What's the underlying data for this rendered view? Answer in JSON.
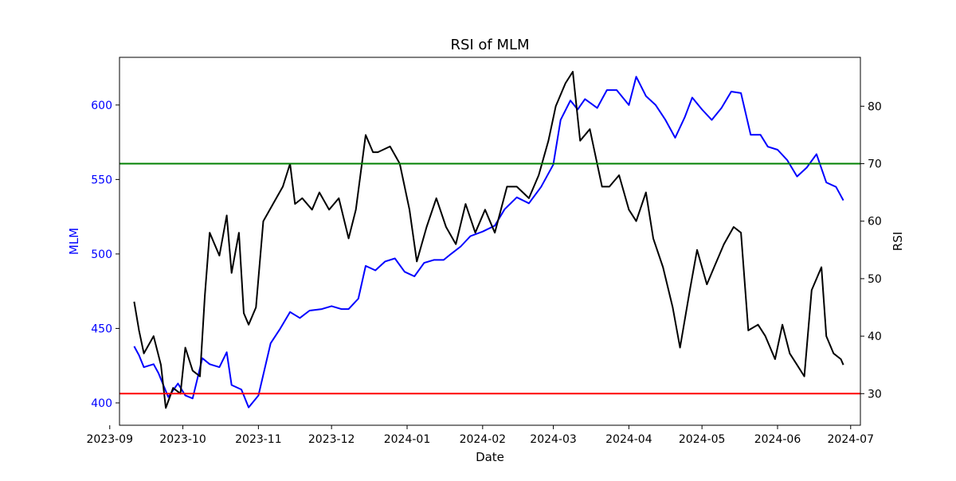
{
  "chart_data": {
    "type": "line",
    "title": "RSI of MLM",
    "xlabel": "Date",
    "ylabel_left": "MLM",
    "ylabel_right": "RSI",
    "x_start": "2023-09-05",
    "x_end": "2024-07-05",
    "x_ticks": [
      "2023-09",
      "2023-10",
      "2023-11",
      "2023-12",
      "2024-01",
      "2024-02",
      "2024-03",
      "2024-04",
      "2024-05",
      "2024-06",
      "2024-07"
    ],
    "ylim_left": [
      385,
      632
    ],
    "ylim_right": [
      24.5,
      88.5
    ],
    "yticks_left": [
      400,
      450,
      500,
      550,
      600
    ],
    "yticks_right": [
      30,
      40,
      50,
      60,
      70,
      80
    ],
    "reference_lines": [
      {
        "value": 70,
        "axis": "right",
        "color": "#008000"
      },
      {
        "value": 30,
        "axis": "right",
        "color": "#ff0000"
      }
    ],
    "series": [
      {
        "name": "MLM",
        "axis": "left",
        "color": "#0000ff",
        "points": [
          [
            "2023-09-11",
            438
          ],
          [
            "2023-09-13",
            432
          ],
          [
            "2023-09-15",
            424
          ],
          [
            "2023-09-19",
            426
          ],
          [
            "2023-09-21",
            420
          ],
          [
            "2023-09-25",
            404
          ],
          [
            "2023-09-29",
            413
          ],
          [
            "2023-10-02",
            405
          ],
          [
            "2023-10-05",
            403
          ],
          [
            "2023-10-09",
            430
          ],
          [
            "2023-10-12",
            426
          ],
          [
            "2023-10-16",
            424
          ],
          [
            "2023-10-19",
            434
          ],
          [
            "2023-10-21",
            412
          ],
          [
            "2023-10-25",
            409
          ],
          [
            "2023-10-28",
            397
          ],
          [
            "2023-11-01",
            405
          ],
          [
            "2023-11-06",
            440
          ],
          [
            "2023-11-10",
            450
          ],
          [
            "2023-11-14",
            461
          ],
          [
            "2023-11-18",
            457
          ],
          [
            "2023-11-22",
            462
          ],
          [
            "2023-11-27",
            463
          ],
          [
            "2023-12-01",
            465
          ],
          [
            "2023-12-05",
            463
          ],
          [
            "2023-12-08",
            463
          ],
          [
            "2023-12-12",
            470
          ],
          [
            "2023-12-15",
            492
          ],
          [
            "2023-12-19",
            489
          ],
          [
            "2023-12-23",
            495
          ],
          [
            "2023-12-27",
            497
          ],
          [
            "2023-12-31",
            488
          ],
          [
            "2024-01-04",
            485
          ],
          [
            "2024-01-08",
            494
          ],
          [
            "2024-01-12",
            496
          ],
          [
            "2024-01-16",
            496
          ],
          [
            "2024-01-19",
            500
          ],
          [
            "2024-01-23",
            505
          ],
          [
            "2024-01-27",
            512
          ],
          [
            "2024-02-01",
            515
          ],
          [
            "2024-02-06",
            519
          ],
          [
            "2024-02-10",
            530
          ],
          [
            "2024-02-15",
            538
          ],
          [
            "2024-02-20",
            534
          ],
          [
            "2024-02-25",
            545
          ],
          [
            "2024-03-01",
            560
          ],
          [
            "2024-03-04",
            590
          ],
          [
            "2024-03-08",
            603
          ],
          [
            "2024-03-11",
            597
          ],
          [
            "2024-03-14",
            604
          ],
          [
            "2024-03-19",
            598
          ],
          [
            "2024-03-23",
            610
          ],
          [
            "2024-03-27",
            610
          ],
          [
            "2024-04-01",
            600
          ],
          [
            "2024-04-04",
            619
          ],
          [
            "2024-04-08",
            606
          ],
          [
            "2024-04-12",
            600
          ],
          [
            "2024-04-16",
            590
          ],
          [
            "2024-04-20",
            578
          ],
          [
            "2024-04-24",
            592
          ],
          [
            "2024-04-27",
            605
          ],
          [
            "2024-05-01",
            597
          ],
          [
            "2024-05-05",
            590
          ],
          [
            "2024-05-09",
            598
          ],
          [
            "2024-05-13",
            609
          ],
          [
            "2024-05-17",
            608
          ],
          [
            "2024-05-21",
            580
          ],
          [
            "2024-05-25",
            580
          ],
          [
            "2024-05-28",
            572
          ],
          [
            "2024-06-01",
            570
          ],
          [
            "2024-06-05",
            563
          ],
          [
            "2024-06-09",
            552
          ],
          [
            "2024-06-13",
            558
          ],
          [
            "2024-06-17",
            567
          ],
          [
            "2024-06-21",
            548
          ],
          [
            "2024-06-25",
            545
          ],
          [
            "2024-06-28",
            536
          ]
        ]
      },
      {
        "name": "RSI",
        "axis": "right",
        "color": "#000000",
        "points": [
          [
            "2023-09-11",
            46
          ],
          [
            "2023-09-13",
            41
          ],
          [
            "2023-09-15",
            37
          ],
          [
            "2023-09-19",
            40
          ],
          [
            "2023-09-22",
            35
          ],
          [
            "2023-09-24",
            27.5
          ],
          [
            "2023-09-27",
            31
          ],
          [
            "2023-09-30",
            30
          ],
          [
            "2023-10-02",
            38
          ],
          [
            "2023-10-05",
            34
          ],
          [
            "2023-10-08",
            33
          ],
          [
            "2023-10-10",
            47
          ],
          [
            "2023-10-12",
            58
          ],
          [
            "2023-10-16",
            54
          ],
          [
            "2023-10-19",
            61
          ],
          [
            "2023-10-21",
            51
          ],
          [
            "2023-10-24",
            58
          ],
          [
            "2023-10-26",
            44
          ],
          [
            "2023-10-28",
            42
          ],
          [
            "2023-10-31",
            45
          ],
          [
            "2023-11-03",
            60
          ],
          [
            "2023-11-07",
            63
          ],
          [
            "2023-11-11",
            66
          ],
          [
            "2023-11-14",
            70
          ],
          [
            "2023-11-16",
            63
          ],
          [
            "2023-11-19",
            64
          ],
          [
            "2023-11-23",
            62
          ],
          [
            "2023-11-26",
            65
          ],
          [
            "2023-11-30",
            62
          ],
          [
            "2023-12-04",
            64
          ],
          [
            "2023-12-08",
            57
          ],
          [
            "2023-12-11",
            62
          ],
          [
            "2023-12-15",
            75
          ],
          [
            "2023-12-18",
            72
          ],
          [
            "2023-12-20",
            72
          ],
          [
            "2023-12-25",
            73
          ],
          [
            "2023-12-29",
            70
          ],
          [
            "2024-01-02",
            62
          ],
          [
            "2024-01-05",
            53
          ],
          [
            "2024-01-09",
            59
          ],
          [
            "2024-01-13",
            64
          ],
          [
            "2024-01-17",
            59
          ],
          [
            "2024-01-21",
            56
          ],
          [
            "2024-01-25",
            63
          ],
          [
            "2024-01-29",
            58
          ],
          [
            "2024-02-02",
            62
          ],
          [
            "2024-02-06",
            58
          ],
          [
            "2024-02-11",
            66
          ],
          [
            "2024-02-15",
            66
          ],
          [
            "2024-02-20",
            64
          ],
          [
            "2024-02-24",
            68
          ],
          [
            "2024-02-28",
            74
          ],
          [
            "2024-03-02",
            80
          ],
          [
            "2024-03-06",
            84
          ],
          [
            "2024-03-09",
            86
          ],
          [
            "2024-03-12",
            74
          ],
          [
            "2024-03-16",
            76
          ],
          [
            "2024-03-18",
            72
          ],
          [
            "2024-03-21",
            66
          ],
          [
            "2024-03-24",
            66
          ],
          [
            "2024-03-28",
            68
          ],
          [
            "2024-04-01",
            62
          ],
          [
            "2024-04-04",
            60
          ],
          [
            "2024-04-08",
            65
          ],
          [
            "2024-04-11",
            57
          ],
          [
            "2024-04-15",
            52
          ],
          [
            "2024-04-19",
            45
          ],
          [
            "2024-04-22",
            38
          ],
          [
            "2024-04-26",
            48
          ],
          [
            "2024-04-29",
            55
          ],
          [
            "2024-05-03",
            49
          ],
          [
            "2024-05-06",
            52
          ],
          [
            "2024-05-10",
            56
          ],
          [
            "2024-05-14",
            59
          ],
          [
            "2024-05-17",
            58
          ],
          [
            "2024-05-20",
            41
          ],
          [
            "2024-05-24",
            42
          ],
          [
            "2024-05-27",
            40
          ],
          [
            "2024-05-31",
            36
          ],
          [
            "2024-06-03",
            42
          ],
          [
            "2024-06-06",
            37
          ],
          [
            "2024-06-09",
            35
          ],
          [
            "2024-06-12",
            33
          ],
          [
            "2024-06-15",
            48
          ],
          [
            "2024-06-19",
            52
          ],
          [
            "2024-06-21",
            40
          ],
          [
            "2024-06-24",
            37
          ],
          [
            "2024-06-27",
            36
          ],
          [
            "2024-06-28",
            35
          ]
        ]
      }
    ]
  }
}
